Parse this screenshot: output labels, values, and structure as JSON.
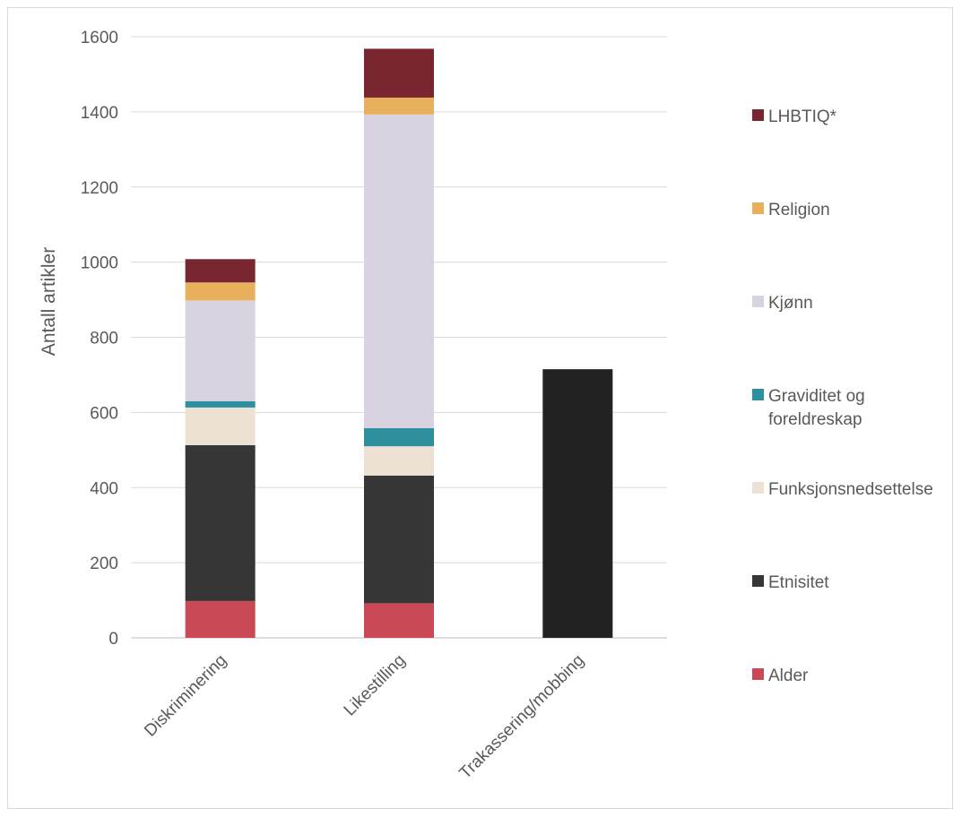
{
  "chart_data": {
    "type": "bar",
    "stacked": true,
    "title": "",
    "xlabel": "",
    "ylabel": "Antall artikler",
    "ylim": [
      0,
      1600
    ],
    "yticks": [
      0,
      200,
      400,
      600,
      800,
      1000,
      1200,
      1400,
      1600
    ],
    "grid": true,
    "legend_position": "right",
    "categories": [
      "Diskriminering",
      "Likestilling",
      "Trakassering/mobbing"
    ],
    "series": [
      {
        "name": "Alder",
        "color": "#c94a56",
        "values": [
          98,
          92,
          0
        ]
      },
      {
        "name": "Etnisitet",
        "color": "#363636",
        "values": [
          415,
          340,
          0
        ]
      },
      {
        "name": "Funksjonsnedsettelse",
        "color": "#ece1d3",
        "values": [
          100,
          78,
          0
        ]
      },
      {
        "name": "Graviditet og foreldreskap",
        "color": "#2e8f9e",
        "values": [
          17,
          48,
          0
        ]
      },
      {
        "name": "Kjønn",
        "color": "#d9d3e1",
        "values": [
          268,
          835,
          0
        ]
      },
      {
        "name": "Religion",
        "color": "#e8b05c",
        "values": [
          48,
          45,
          0
        ]
      },
      {
        "name": "LHBTIQ*",
        "color": "#7a2630",
        "values": [
          62,
          130,
          0
        ]
      },
      {
        "name": "",
        "color": "#222222",
        "values": [
          0,
          0,
          715
        ]
      }
    ],
    "legend": [
      {
        "label": "LHBTIQ*",
        "color": "#7a2630"
      },
      {
        "label": "Religion",
        "color": "#e8b05c"
      },
      {
        "label": "Kjønn",
        "color": "#d9d3e1"
      },
      {
        "label": "Graviditet og foreldreskap",
        "color": "#2e8f9e"
      },
      {
        "label": "Funksjonsnedsettelse",
        "color": "#ece1d3"
      },
      {
        "label": "Etnisitet",
        "color": "#363636"
      },
      {
        "label": "Alder",
        "color": "#c94a56"
      }
    ]
  }
}
